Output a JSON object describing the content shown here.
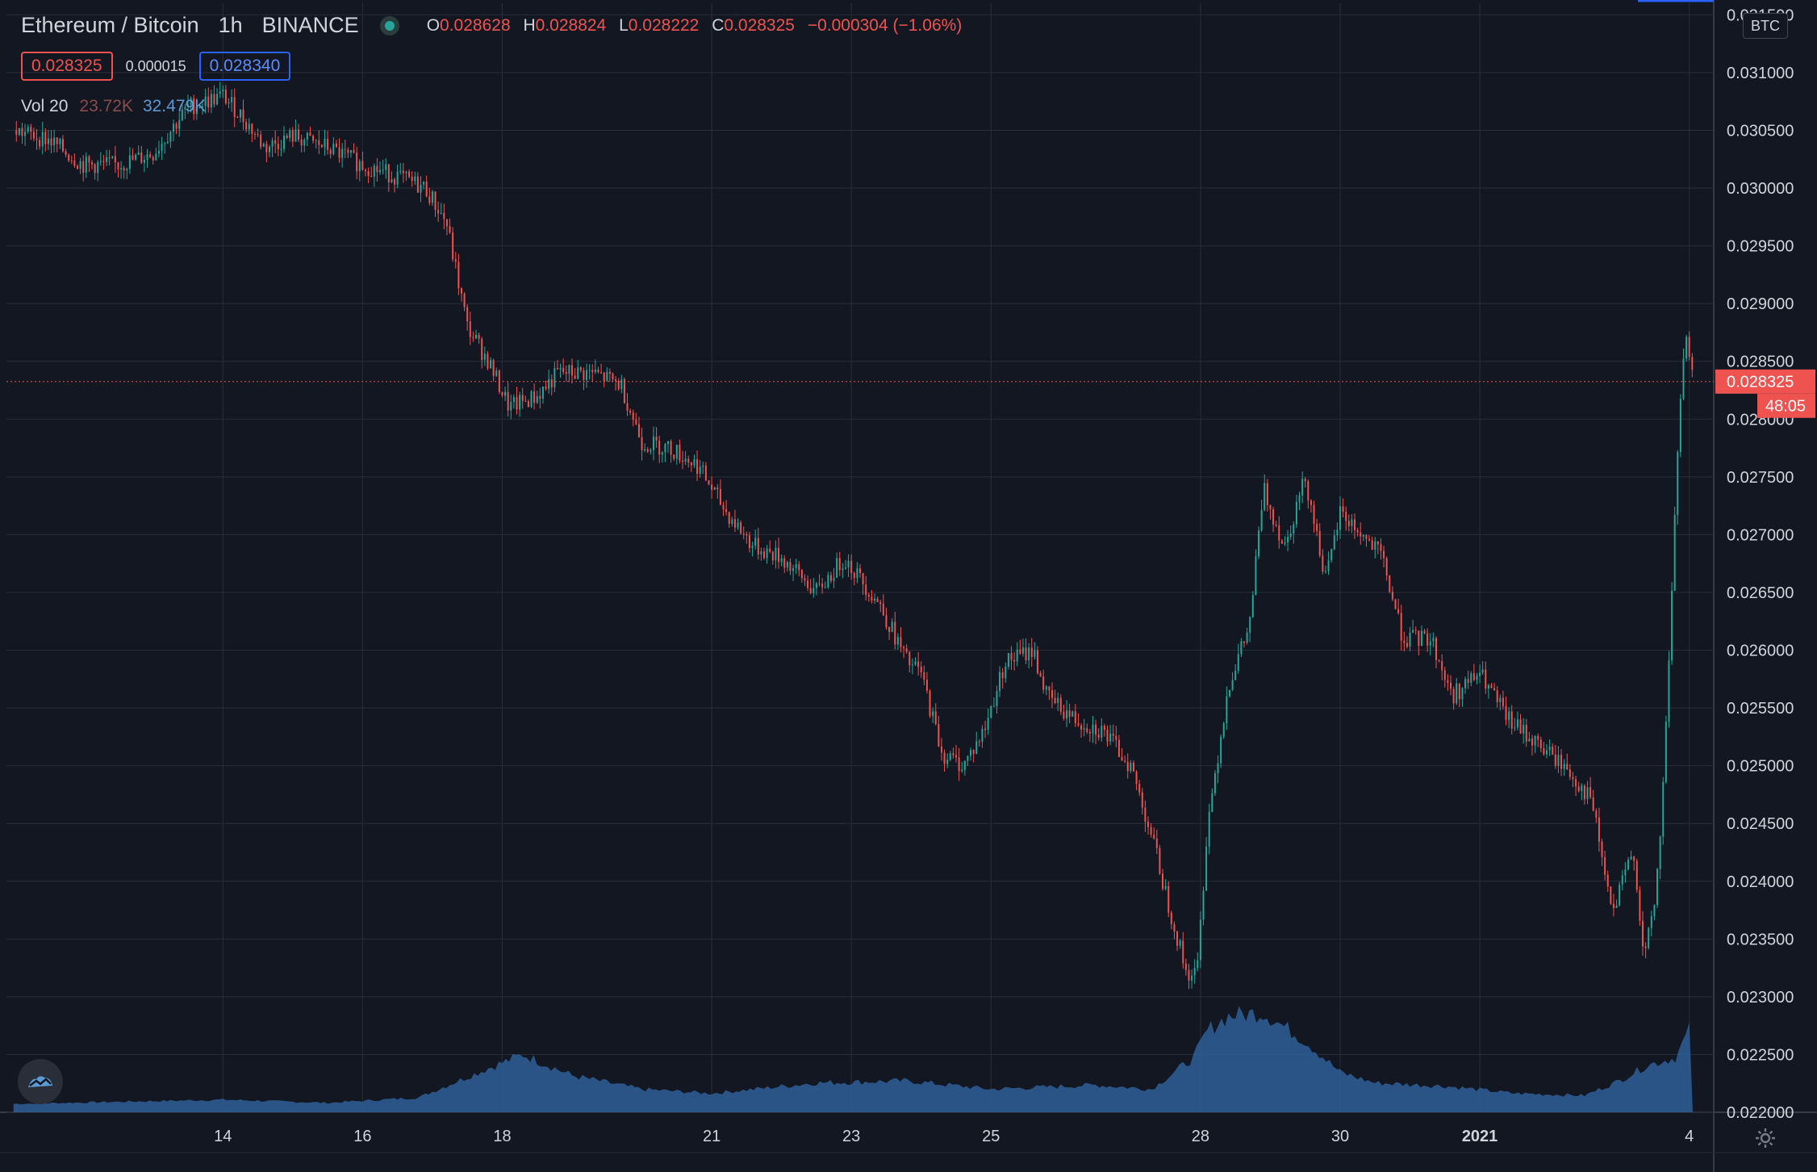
{
  "header": {
    "symbol": "Ethereum / Bitcoin",
    "interval": "1h",
    "exchange": "BINANCE",
    "open_key": "O",
    "open": "0.028628",
    "high_key": "H",
    "high": "0.028824",
    "low_key": "L",
    "low": "0.028222",
    "close_key": "C",
    "close": "0.028325",
    "change": "−0.000304 (−1.06%)"
  },
  "quote": {
    "bid": "0.028325",
    "spread": "0.000015",
    "ask": "0.028340"
  },
  "volume_legend": {
    "label": "Vol 20",
    "value_a": "23.72K",
    "value_b": "32.479K"
  },
  "currency_label": "BTC",
  "icons": {
    "logo": "tradingview-logo-icon",
    "settings": "gear-icon",
    "status": "market-status-dot-icon"
  },
  "colors": {
    "background": "#131722",
    "up": "#26a69a",
    "down": "#ef5350",
    "volume": "#2f5f96",
    "grid": "#2a2e39",
    "text": "#d1d4dc"
  },
  "chart_data": {
    "type": "candlestick",
    "y_axis": {
      "ylim": [
        0.022,
        0.0316
      ],
      "ticks": [
        "0.031500",
        "0.031000",
        "0.030500",
        "0.030000",
        "0.029500",
        "0.029000",
        "0.028500",
        "0.028000",
        "0.027500",
        "0.027000",
        "0.026500",
        "0.026000",
        "0.025500",
        "0.025000",
        "0.024500",
        "0.024000",
        "0.023500",
        "0.023000",
        "0.022500",
        "0.022000"
      ]
    },
    "x_axis": {
      "ticks": [
        {
          "label": "14",
          "day": 3
        },
        {
          "label": "16",
          "day": 5
        },
        {
          "label": "18",
          "day": 7
        },
        {
          "label": "21",
          "day": 10
        },
        {
          "label": "23",
          "day": 12
        },
        {
          "label": "25",
          "day": 14
        },
        {
          "label": "28",
          "day": 17
        },
        {
          "label": "30",
          "day": 19
        },
        {
          "label": "2021",
          "day": 21
        },
        {
          "label": "4",
          "day": 24
        }
      ]
    },
    "current_price": {
      "value": "0.028325",
      "time_left": "48:05"
    },
    "close_path": [
      {
        "day": 0.0,
        "price": 0.0305
      },
      {
        "day": 0.5,
        "price": 0.03042
      },
      {
        "day": 1.0,
        "price": 0.0302
      },
      {
        "day": 1.5,
        "price": 0.0302
      },
      {
        "day": 2.0,
        "price": 0.0303
      },
      {
        "day": 2.5,
        "price": 0.0307
      },
      {
        "day": 3.0,
        "price": 0.0308
      },
      {
        "day": 3.3,
        "price": 0.0306
      },
      {
        "day": 3.6,
        "price": 0.03035
      },
      {
        "day": 4.0,
        "price": 0.03045
      },
      {
        "day": 4.5,
        "price": 0.03035
      },
      {
        "day": 5.0,
        "price": 0.0302
      },
      {
        "day": 5.5,
        "price": 0.0301
      },
      {
        "day": 5.9,
        "price": 0.03
      },
      {
        "day": 6.2,
        "price": 0.0297
      },
      {
        "day": 6.5,
        "price": 0.0288
      },
      {
        "day": 6.8,
        "price": 0.0285
      },
      {
        "day": 7.1,
        "price": 0.0281
      },
      {
        "day": 7.5,
        "price": 0.0282
      },
      {
        "day": 7.8,
        "price": 0.0284
      },
      {
        "day": 8.3,
        "price": 0.0284
      },
      {
        "day": 8.7,
        "price": 0.0283
      },
      {
        "day": 9.0,
        "price": 0.0278
      },
      {
        "day": 9.4,
        "price": 0.02775
      },
      {
        "day": 9.8,
        "price": 0.0276
      },
      {
        "day": 10.2,
        "price": 0.0272
      },
      {
        "day": 10.6,
        "price": 0.0269
      },
      {
        "day": 11.0,
        "price": 0.0268
      },
      {
        "day": 11.5,
        "price": 0.0265
      },
      {
        "day": 11.9,
        "price": 0.0268
      },
      {
        "day": 12.4,
        "price": 0.0264
      },
      {
        "day": 12.8,
        "price": 0.0259
      },
      {
        "day": 13.0,
        "price": 0.0258
      },
      {
        "day": 13.3,
        "price": 0.0251
      },
      {
        "day": 13.6,
        "price": 0.025
      },
      {
        "day": 13.9,
        "price": 0.0253
      },
      {
        "day": 14.2,
        "price": 0.0259
      },
      {
        "day": 14.6,
        "price": 0.026
      },
      {
        "day": 14.8,
        "price": 0.0256
      },
      {
        "day": 15.2,
        "price": 0.0254
      },
      {
        "day": 15.6,
        "price": 0.0253
      },
      {
        "day": 16.0,
        "price": 0.025
      },
      {
        "day": 16.3,
        "price": 0.0244
      },
      {
        "day": 16.5,
        "price": 0.0239
      },
      {
        "day": 16.8,
        "price": 0.0232
      },
      {
        "day": 16.95,
        "price": 0.0232
      },
      {
        "day": 17.1,
        "price": 0.0245
      },
      {
        "day": 17.4,
        "price": 0.0257
      },
      {
        "day": 17.7,
        "price": 0.0262
      },
      {
        "day": 17.9,
        "price": 0.0274
      },
      {
        "day": 18.2,
        "price": 0.0269
      },
      {
        "day": 18.5,
        "price": 0.0275
      },
      {
        "day": 18.8,
        "price": 0.0266
      },
      {
        "day": 19.0,
        "price": 0.0272
      },
      {
        "day": 19.3,
        "price": 0.027
      },
      {
        "day": 19.6,
        "price": 0.0268
      },
      {
        "day": 19.9,
        "price": 0.0261
      },
      {
        "day": 20.3,
        "price": 0.0261
      },
      {
        "day": 20.6,
        "price": 0.0256
      },
      {
        "day": 21.0,
        "price": 0.0258
      },
      {
        "day": 21.4,
        "price": 0.0254
      },
      {
        "day": 21.8,
        "price": 0.0252
      },
      {
        "day": 22.2,
        "price": 0.025
      },
      {
        "day": 22.6,
        "price": 0.0247
      },
      {
        "day": 22.9,
        "price": 0.0237
      },
      {
        "day": 23.2,
        "price": 0.0243
      },
      {
        "day": 23.35,
        "price": 0.0233
      },
      {
        "day": 23.5,
        "price": 0.0238
      },
      {
        "day": 23.6,
        "price": 0.0245
      },
      {
        "day": 23.75,
        "price": 0.0265
      },
      {
        "day": 23.85,
        "price": 0.028
      },
      {
        "day": 23.95,
        "price": 0.0287
      },
      {
        "day": 24.05,
        "price": 0.02833
      }
    ],
    "volume_path": [
      {
        "day": 0.0,
        "value": 0.08
      },
      {
        "day": 3.0,
        "value": 0.12
      },
      {
        "day": 4.5,
        "value": 0.09
      },
      {
        "day": 5.8,
        "value": 0.14
      },
      {
        "day": 6.8,
        "value": 0.42
      },
      {
        "day": 7.3,
        "value": 0.55
      },
      {
        "day": 8.0,
        "value": 0.35
      },
      {
        "day": 9.0,
        "value": 0.22
      },
      {
        "day": 10.0,
        "value": 0.18
      },
      {
        "day": 11.5,
        "value": 0.28
      },
      {
        "day": 12.8,
        "value": 0.3
      },
      {
        "day": 14.0,
        "value": 0.22
      },
      {
        "day": 15.5,
        "value": 0.26
      },
      {
        "day": 16.3,
        "value": 0.22
      },
      {
        "day": 16.9,
        "value": 0.52
      },
      {
        "day": 17.1,
        "value": 0.78
      },
      {
        "day": 17.4,
        "value": 0.92
      },
      {
        "day": 17.9,
        "value": 0.95
      },
      {
        "day": 18.5,
        "value": 0.68
      },
      {
        "day": 19.0,
        "value": 0.38
      },
      {
        "day": 19.5,
        "value": 0.28
      },
      {
        "day": 20.5,
        "value": 0.25
      },
      {
        "day": 21.5,
        "value": 0.18
      },
      {
        "day": 22.5,
        "value": 0.16
      },
      {
        "day": 23.0,
        "value": 0.3
      },
      {
        "day": 23.4,
        "value": 0.45
      },
      {
        "day": 23.8,
        "value": 0.52
      },
      {
        "day": 24.05,
        "value": 0.85
      }
    ]
  }
}
